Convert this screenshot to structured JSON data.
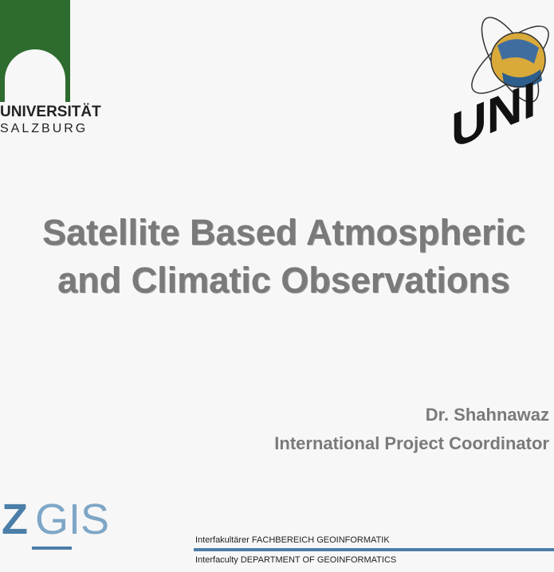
{
  "header": {
    "university_name": "UNIVERSITÄT",
    "university_city": "SALZBURG",
    "unigis_logo_text": "UNIGIS"
  },
  "slide": {
    "title_line1": "Satellite Based Atmospheric",
    "title_line2": "and Climatic Observations",
    "author_name": "Dr. Shahnawaz",
    "author_role": "International Project Coordinator"
  },
  "footer": {
    "zgis_z": "Z",
    "zgis_gis": "GIS",
    "department_de": "Interfakultärer FACHBEREICH GEOINFORMATIK",
    "department_en": "Interfaculty DEPARTMENT OF GEOINFORMATICS"
  },
  "colors": {
    "university_green": "#2d6b2f",
    "title_gray": "#7a7a7a",
    "zgis_blue": "#4b7ea8",
    "background": "#f7f7f7"
  }
}
